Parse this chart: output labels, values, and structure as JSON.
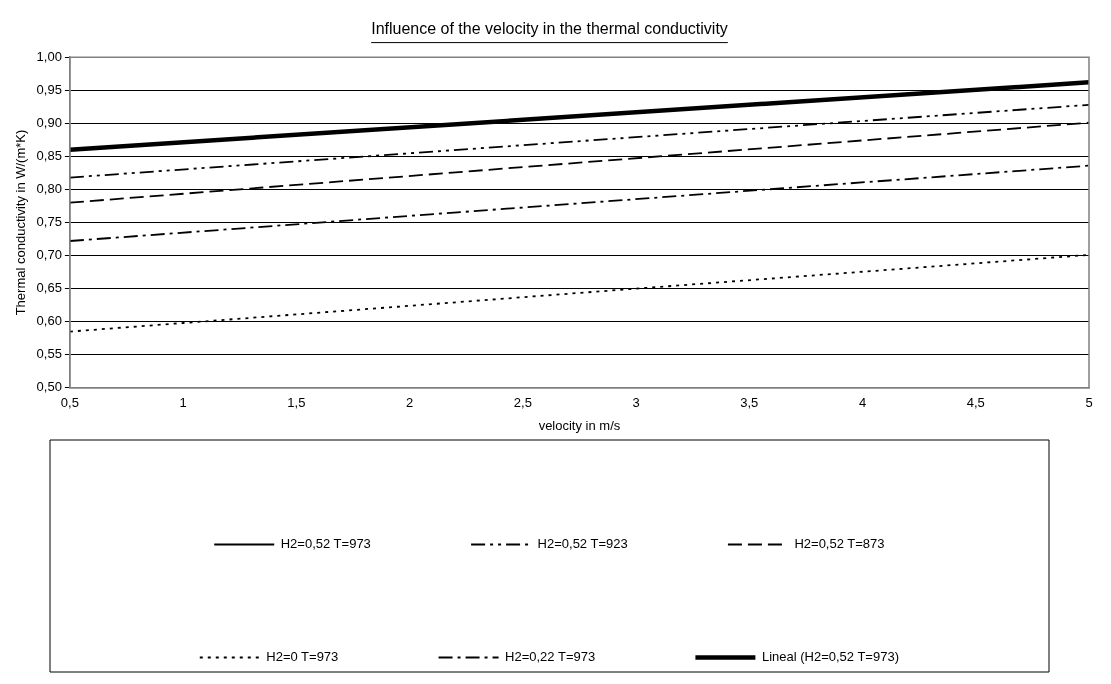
{
  "chart_data": {
    "type": "line",
    "title": "Influence of the velocity in the thermal conductivity",
    "xlabel": "velocity in m/s",
    "ylabel": "Thermal conductivity in W/(m*K)",
    "x": [
      0.5,
      5
    ],
    "series": [
      {
        "name": "H2=0,52 T=973",
        "color": "#000000",
        "line_style": "solid",
        "values": [
          null,
          null
        ]
      },
      {
        "name": "H2=0,52 T=923",
        "color": "#000000",
        "line_style": "dashdotdot",
        "values": [
          0.818,
          0.928
        ]
      },
      {
        "name": "H2=0,52 T=873",
        "color": "#000000",
        "line_style": "dashed",
        "values": [
          0.78,
          0.901
        ]
      },
      {
        "name": "H2=0 T=973",
        "color": "#000000",
        "line_style": "dotted",
        "x": [
          0.5,
          1,
          3,
          5
        ],
        "values": [
          0.585,
          0.598,
          0.65,
          0.701
        ]
      },
      {
        "name": "H2=0,22 T=973",
        "color": "#000000",
        "line_style": "dashdot",
        "values": [
          0.722,
          0.836
        ]
      },
      {
        "name": "Lineal (H2=0,52 T=973)",
        "type": "line",
        "color": "#000000",
        "line_style": "solid",
        "x": [
          0.5,
          5
        ],
        "values": [
          0.86,
          0.962
        ]
      }
    ],
    "xlim": [
      0.5,
      5
    ],
    "xticks": [
      {
        "value": 0.5,
        "label": "0,5"
      },
      1,
      {
        "value": 1.5,
        "label": "1,5"
      },
      2,
      {
        "value": 2.5,
        "label": "2,5"
      },
      3,
      {
        "value": 3.5,
        "label": "3,5"
      },
      4,
      {
        "value": 4.5,
        "label": "4,5"
      },
      5
    ],
    "ylim": [
      0.5,
      1
    ],
    "yticks": [
      {
        "value": 0.5,
        "label": "0,50"
      },
      {
        "value": 0.55,
        "label": "0,55"
      },
      {
        "value": 0.6,
        "label": "0,60"
      },
      {
        "value": 0.65,
        "label": "0,65"
      },
      {
        "value": 0.7,
        "label": "0,70"
      },
      {
        "value": 0.75,
        "label": "0,75"
      },
      {
        "value": 0.8,
        "label": "0,80"
      },
      {
        "value": 0.85,
        "label": "0,85"
      },
      {
        "value": 0.9,
        "label": "0,90"
      },
      {
        "value": 0.95,
        "label": "0,95"
      },
      {
        "value": 1,
        "label": "1,00"
      }
    ],
    "grid": "y",
    "legend": "bottom",
    "marker": "none"
  }
}
